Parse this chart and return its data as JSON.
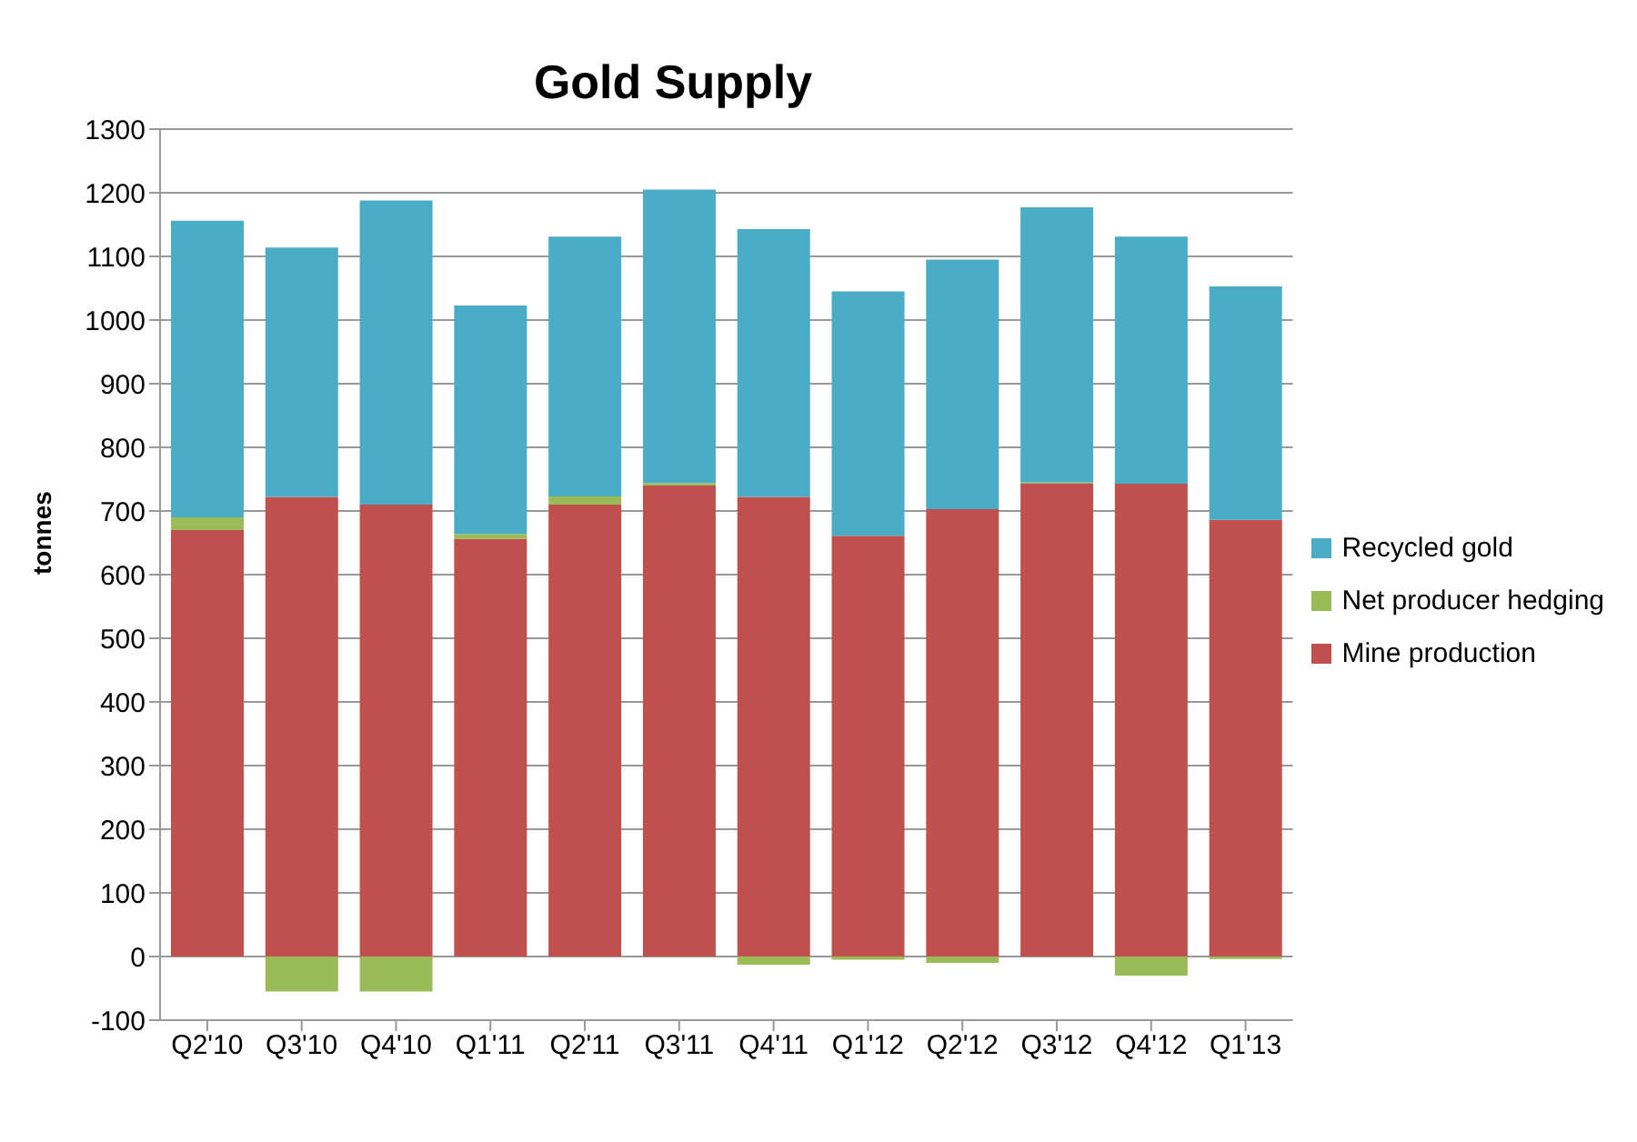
{
  "chart_data": {
    "type": "bar",
    "title": "Gold Supply",
    "ylabel": "tonnes",
    "stacked": true,
    "categories": [
      "Q2'10",
      "Q3'10",
      "Q4'10",
      "Q1'11",
      "Q2'11",
      "Q3'11",
      "Q4'11",
      "Q1'12",
      "Q2'12",
      "Q3'12",
      "Q4'12",
      "Q1'13"
    ],
    "series": [
      {
        "name": "Mine production",
        "color": "#c0504d",
        "values": [
          670,
          722,
          710,
          656,
          710,
          740,
          722,
          661,
          703,
          743,
          743,
          686
        ]
      },
      {
        "name": "Net producer hedging",
        "color": "#9bbb59",
        "values": [
          20,
          -55,
          -55,
          8,
          13,
          4,
          -13,
          -5,
          -10,
          2,
          -30,
          -4
        ]
      },
      {
        "name": "Recycled gold",
        "color": "#4bacc6",
        "values": [
          466,
          392,
          478,
          359,
          408,
          461,
          421,
          384,
          392,
          432,
          388,
          367
        ]
      }
    ],
    "ylim": [
      -100,
      1300
    ],
    "yticks": [
      -100,
      0,
      100,
      200,
      300,
      400,
      500,
      600,
      700,
      800,
      900,
      1000,
      1100,
      1200,
      1300
    ],
    "grid": "y",
    "legend": "right"
  }
}
